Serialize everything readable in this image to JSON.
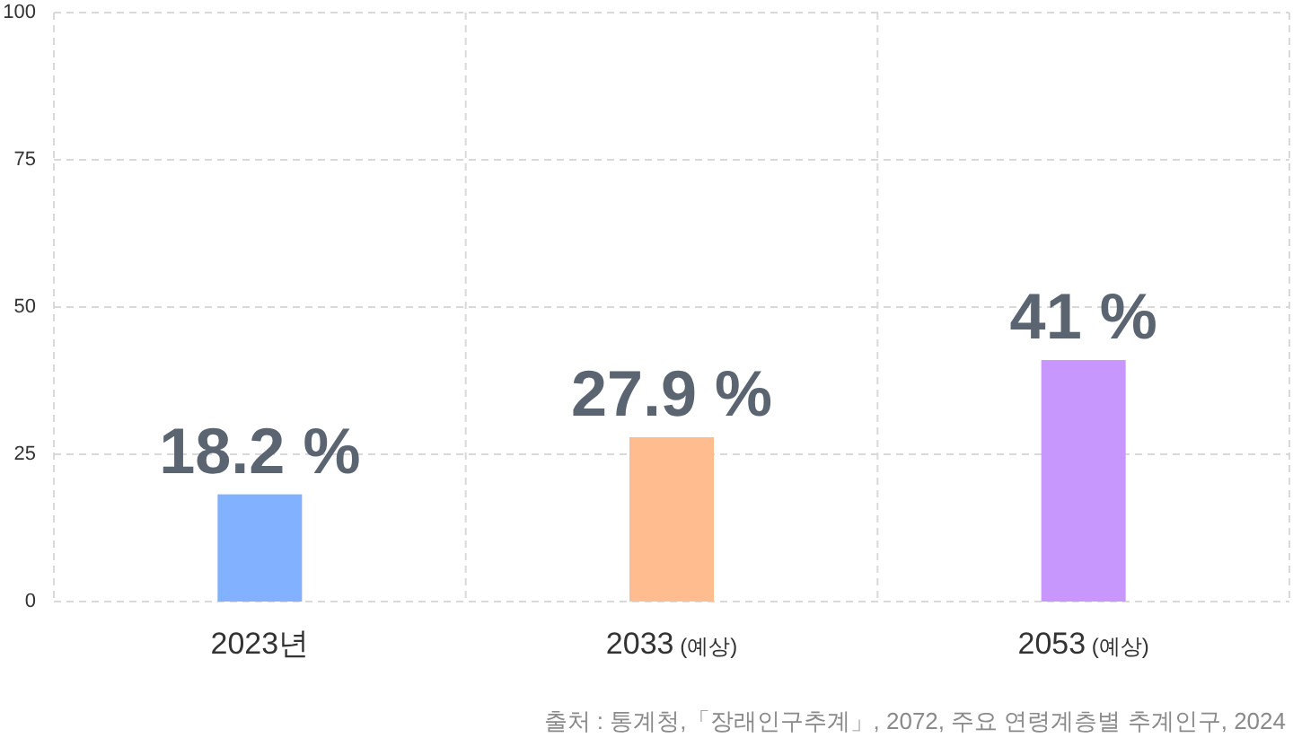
{
  "chart_data": {
    "type": "bar",
    "categories": [
      "2023년",
      "2033 (예상)",
      "2053 (예상)"
    ],
    "values": [
      18.2,
      27.9,
      41
    ],
    "colors": [
      "#82b1ff",
      "#ffbc8f",
      "#c797fd"
    ],
    "value_labels": [
      "18.2 %",
      "27.9 %",
      "41 %"
    ],
    "ylim": [
      0,
      100
    ],
    "yticks": [
      0,
      25,
      50,
      75,
      100
    ],
    "grid": true,
    "annotations": [
      "출처 : 통계청,「장래인구추계」, 2072, 주요 연령계층별 추계인구, 2024"
    ]
  }
}
